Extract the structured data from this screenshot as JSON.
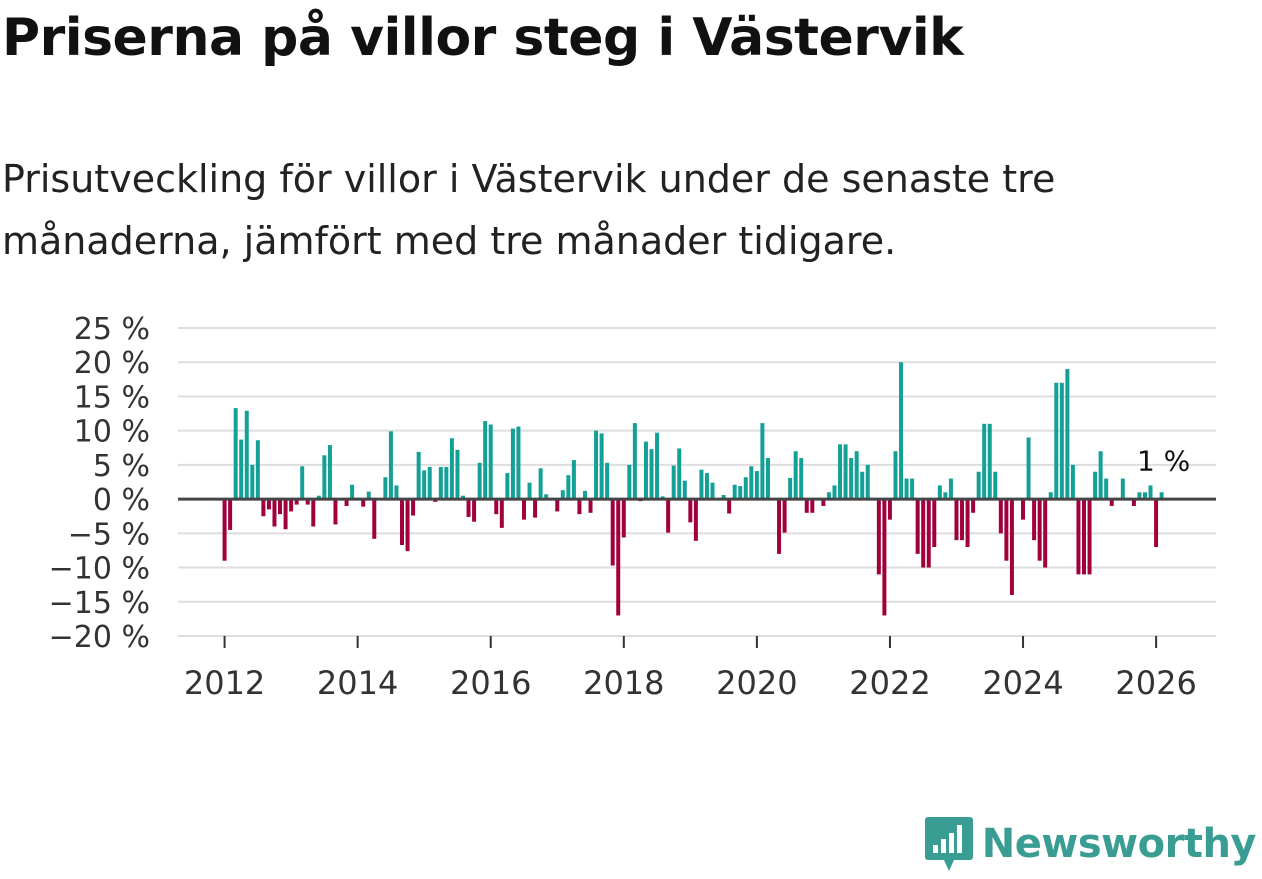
{
  "title": "Priserna på villor steg i Västervik",
  "subtitle": "Prisutveckling för villor i Västervik under de senaste tre månaderna, jämfört med tre månader tidigare.",
  "brand": {
    "name": "Newsworthy",
    "logo_icon": "bar-chart-speech-bubble-icon"
  },
  "colors": {
    "positive": "#13a096",
    "negative": "#a0003c",
    "zero_line": "#444444",
    "grid": "#dddddd",
    "brand": "#3a9d93"
  },
  "chart_data": {
    "type": "bar",
    "title": "Priserna på villor steg i Västervik",
    "xlabel": "",
    "ylabel": "",
    "x_unit": "year (monthly bars)",
    "x_start": 2012.0,
    "x_step": 0.08333,
    "xlim": [
      2011.3,
      2026.9
    ],
    "ylim": [
      -20,
      25
    ],
    "y_ticks": [
      -20,
      -15,
      -10,
      -5,
      0,
      5,
      10,
      15,
      20,
      25
    ],
    "y_tick_labels": [
      "−20 %",
      "−15 %",
      "−10 %",
      "−5 %",
      "0 %",
      "5 %",
      "10 %",
      "15 %",
      "20 %",
      "25 %"
    ],
    "x_ticks": [
      2012,
      2014,
      2016,
      2018,
      2020,
      2022,
      2024,
      2026
    ],
    "x_tick_labels": [
      "2012",
      "2014",
      "2016",
      "2018",
      "2020",
      "2022",
      "2024",
      "2026"
    ],
    "values": [
      -9,
      -4.5,
      13.3,
      8.7,
      12.9,
      5,
      8.6,
      -2.5,
      -1.5,
      -4,
      -2.2,
      -4.4,
      -1.8,
      -0.8,
      4.8,
      -0.8,
      -4,
      0.5,
      6.4,
      7.9,
      -3.7,
      0,
      -1,
      2.1,
      0,
      -1.1,
      1.1,
      -5.8,
      0,
      3.2,
      9.9,
      2,
      -6.7,
      -7.6,
      -2.4,
      6.9,
      4.2,
      4.7,
      -0.4,
      4.7,
      4.7,
      8.9,
      7.2,
      0.5,
      -2.6,
      -3.3,
      5.3,
      11.4,
      10.9,
      -2.2,
      -4.2,
      3.8,
      10.3,
      10.6,
      -3,
      2.4,
      -2.7,
      4.5,
      0.7,
      0,
      -1.8,
      1.3,
      3.5,
      5.7,
      -2.2,
      1.2,
      -2,
      10,
      9.6,
      5.3,
      -9.7,
      -17,
      -5.6,
      5,
      11.1,
      -0.3,
      8.4,
      7.3,
      9.7,
      0.4,
      -4.9,
      4.9,
      7.4,
      2.7,
      -3.4,
      -6.1,
      4.3,
      3.8,
      2.4,
      0,
      0.6,
      -2.1,
      2.1,
      1.9,
      3.2,
      4.8,
      4.1,
      11.1,
      6,
      0,
      -8,
      -4.9,
      3.1,
      7,
      6,
      -2,
      -2,
      0,
      -1,
      1,
      2,
      8,
      8,
      6,
      7,
      4,
      5,
      0,
      -11,
      -17,
      -3,
      7,
      20,
      3,
      3,
      -8,
      -10,
      -10,
      -7,
      2,
      1,
      3,
      -6,
      -6,
      -7,
      -2,
      4,
      11,
      11,
      4,
      -5,
      -9,
      -14,
      0,
      -3,
      9,
      -6,
      -9,
      -10,
      1,
      17,
      17,
      19,
      5,
      -11,
      -11,
      -11,
      4,
      7,
      3,
      -1,
      0,
      3,
      0,
      -1,
      1,
      1,
      2,
      -7,
      1
    ],
    "annotation": {
      "text": "1 %",
      "anchor": "last-bar"
    }
  }
}
